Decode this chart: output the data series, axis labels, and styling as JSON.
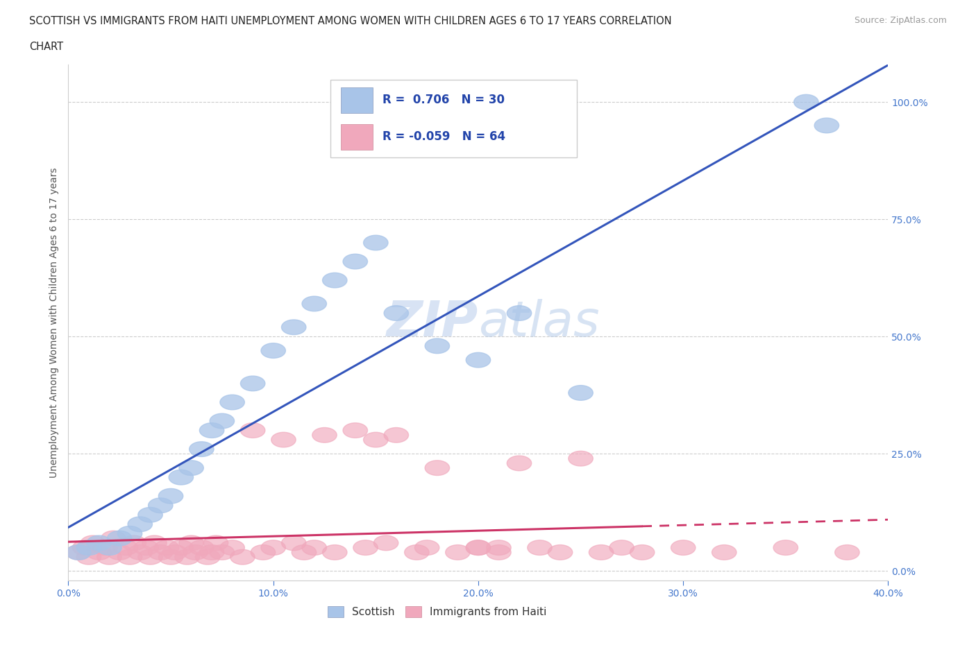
{
  "title_line1": "SCOTTISH VS IMMIGRANTS FROM HAITI UNEMPLOYMENT AMONG WOMEN WITH CHILDREN AGES 6 TO 17 YEARS CORRELATION",
  "title_line2": "CHART",
  "source": "Source: ZipAtlas.com",
  "ylabel": "Unemployment Among Women with Children Ages 6 to 17 years",
  "xlim": [
    0.0,
    0.4
  ],
  "ylim": [
    -0.02,
    1.08
  ],
  "xticks": [
    0.0,
    0.1,
    0.2,
    0.3,
    0.4
  ],
  "xtick_labels": [
    "0.0%",
    "10.0%",
    "20.0%",
    "30.0%",
    "40.0%"
  ],
  "yticks": [
    0.0,
    0.25,
    0.5,
    0.75,
    1.0
  ],
  "ytick_labels": [
    "0.0%",
    "25.0%",
    "50.0%",
    "75.0%",
    "100.0%"
  ],
  "scottish_color": "#a8c4e8",
  "haiti_color": "#f0a8bc",
  "line_blue": "#3355bb",
  "line_pink": "#cc3366",
  "watermark_color": "#c8d8f0",
  "scottish_x": [
    0.005,
    0.01,
    0.015,
    0.02,
    0.025,
    0.03,
    0.035,
    0.04,
    0.045,
    0.05,
    0.055,
    0.06,
    0.065,
    0.07,
    0.075,
    0.08,
    0.09,
    0.1,
    0.11,
    0.12,
    0.13,
    0.14,
    0.15,
    0.16,
    0.18,
    0.2,
    0.22,
    0.25,
    0.36,
    0.37
  ],
  "scottish_y": [
    0.04,
    0.05,
    0.06,
    0.05,
    0.07,
    0.08,
    0.1,
    0.12,
    0.14,
    0.16,
    0.2,
    0.22,
    0.26,
    0.3,
    0.32,
    0.36,
    0.4,
    0.47,
    0.52,
    0.57,
    0.62,
    0.66,
    0.7,
    0.55,
    0.48,
    0.45,
    0.55,
    0.38,
    1.0,
    0.95
  ],
  "haiti_x": [
    0.005,
    0.008,
    0.01,
    0.012,
    0.015,
    0.018,
    0.02,
    0.022,
    0.025,
    0.028,
    0.03,
    0.032,
    0.035,
    0.038,
    0.04,
    0.042,
    0.045,
    0.048,
    0.05,
    0.052,
    0.055,
    0.058,
    0.06,
    0.062,
    0.065,
    0.068,
    0.07,
    0.072,
    0.075,
    0.08,
    0.085,
    0.09,
    0.095,
    0.1,
    0.105,
    0.11,
    0.115,
    0.12,
    0.125,
    0.13,
    0.14,
    0.145,
    0.15,
    0.155,
    0.16,
    0.17,
    0.175,
    0.18,
    0.19,
    0.2,
    0.21,
    0.22,
    0.23,
    0.24,
    0.25,
    0.26,
    0.27,
    0.28,
    0.3,
    0.32,
    0.35,
    0.38,
    0.2,
    0.21
  ],
  "haiti_y": [
    0.04,
    0.05,
    0.03,
    0.06,
    0.04,
    0.05,
    0.03,
    0.07,
    0.04,
    0.05,
    0.03,
    0.06,
    0.04,
    0.05,
    0.03,
    0.06,
    0.04,
    0.05,
    0.03,
    0.04,
    0.05,
    0.03,
    0.06,
    0.04,
    0.05,
    0.03,
    0.04,
    0.06,
    0.04,
    0.05,
    0.03,
    0.3,
    0.04,
    0.05,
    0.28,
    0.06,
    0.04,
    0.05,
    0.29,
    0.04,
    0.3,
    0.05,
    0.28,
    0.06,
    0.29,
    0.04,
    0.05,
    0.22,
    0.04,
    0.05,
    0.04,
    0.23,
    0.05,
    0.04,
    0.24,
    0.04,
    0.05,
    0.04,
    0.05,
    0.04,
    0.05,
    0.04,
    0.05,
    0.05
  ]
}
